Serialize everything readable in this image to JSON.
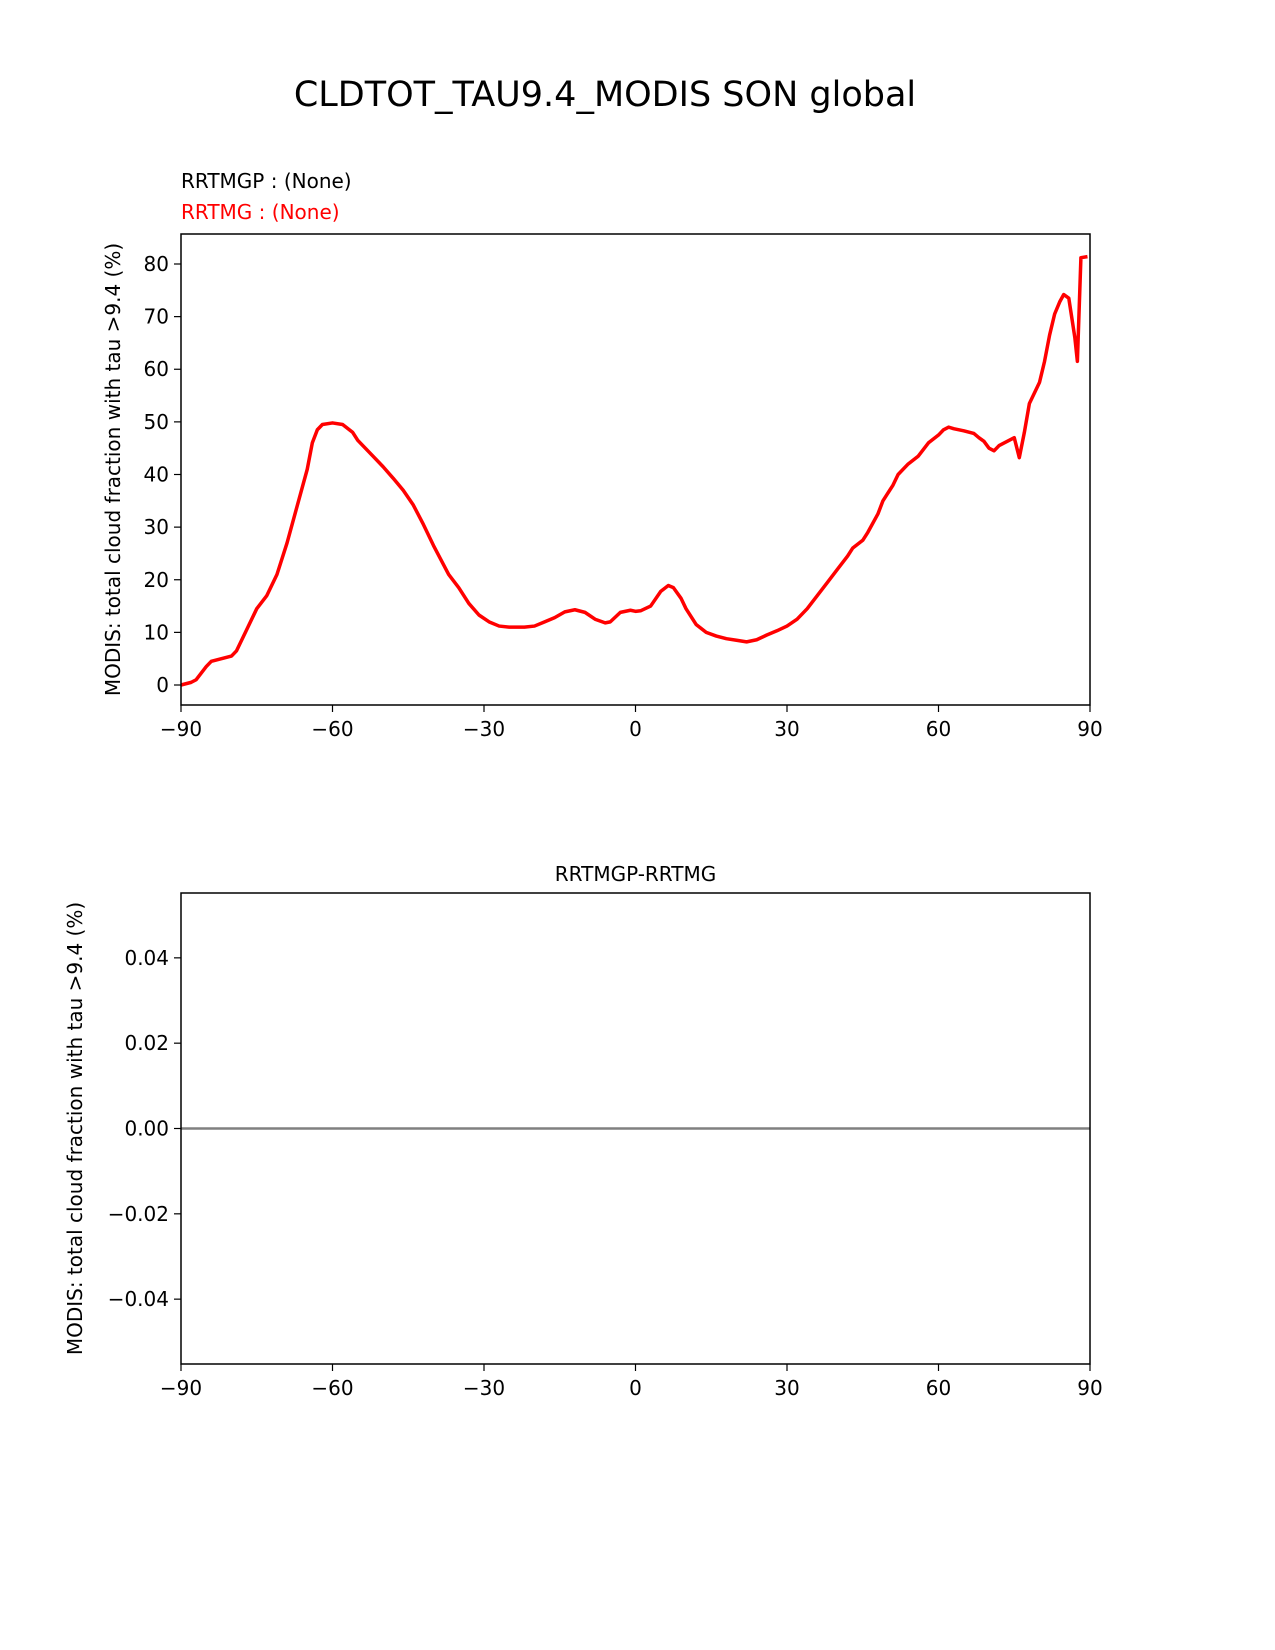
{
  "title": "CLDTOT_TAU9.4_MODIS SON global",
  "chart_data": [
    {
      "type": "line",
      "annotations": [
        {
          "text": "RRTMGP :   (None)",
          "color": "#000000"
        },
        {
          "text": "RRTMG :  (None)",
          "color": "#ff0000"
        }
      ],
      "y_label": "MODIS: total cloud fraction with tau >9.4 (%)",
      "xlim": [
        -90,
        90
      ],
      "ylim": [
        -3.8,
        85.7
      ],
      "xticks": [
        {
          "value": -90,
          "label": "−90"
        },
        {
          "value": -60,
          "label": "−60"
        },
        {
          "value": -30,
          "label": "−30"
        },
        0,
        30,
        60,
        90
      ],
      "yticks": [
        0,
        10,
        20,
        30,
        40,
        50,
        60,
        70,
        80
      ],
      "series": [
        {
          "color": "#ff0000",
          "x": [
            -90,
            -88,
            -87,
            -85,
            -84,
            -82,
            -80,
            -79,
            -77,
            -75,
            -73,
            -71,
            -69,
            -67,
            -65,
            -64,
            -63,
            -62,
            -60,
            -58,
            -56,
            -55,
            -52,
            -50,
            -48,
            -46,
            -44,
            -42,
            -40,
            -37,
            -35,
            -33,
            -31,
            -29,
            -27,
            -25,
            -22,
            -20,
            -18,
            -16,
            -14,
            -12,
            -10,
            -8,
            -6,
            -5,
            -3,
            -1,
            0,
            1,
            3,
            5,
            6.5,
            7.5,
            9,
            10,
            12,
            14,
            16,
            18,
            20,
            22,
            24,
            26,
            28,
            30,
            32,
            34,
            36,
            38,
            40,
            42,
            43,
            45,
            46,
            48,
            49,
            51,
            52,
            54,
            56,
            58,
            60,
            61,
            62,
            63,
            65,
            67,
            68,
            69,
            70,
            71,
            72,
            74,
            75,
            76,
            77,
            78,
            80,
            81,
            82,
            83,
            84,
            84.8,
            85.8,
            87,
            87.5,
            88.2,
            89.5
          ],
          "values": [
            0,
            0.5,
            1,
            3.5,
            4.5,
            5,
            5.5,
            6.5,
            10.5,
            14.5,
            17,
            21,
            27,
            34,
            41,
            46,
            48.5,
            49.5,
            49.8,
            49.5,
            48,
            46.5,
            43.5,
            41.5,
            39.3,
            37,
            34.2,
            30.5,
            26.5,
            21,
            18.5,
            15.5,
            13.3,
            12,
            11.2,
            11,
            11,
            11.2,
            12,
            12.8,
            13.9,
            14.3,
            13.8,
            12.5,
            11.8,
            12,
            13.8,
            14.2,
            14,
            14.1,
            15,
            17.8,
            18.9,
            18.5,
            16.5,
            14.5,
            11.5,
            10,
            9.3,
            8.8,
            8.5,
            8.2,
            8.6,
            9.5,
            10.3,
            11.2,
            12.5,
            14.5,
            17,
            19.5,
            22,
            24.5,
            26,
            27.5,
            29,
            32.5,
            35,
            38,
            40,
            42,
            43.5,
            46,
            47.5,
            48.5,
            49,
            48.7,
            48.3,
            47.8,
            47,
            46.3,
            45,
            44.5,
            45.5,
            46.5,
            47,
            43.2,
            48,
            53.5,
            57.5,
            61.5,
            66.5,
            70.5,
            72.8,
            74.2,
            73.5,
            66,
            61.5,
            81.2,
            81.4
          ]
        }
      ]
    },
    {
      "type": "line",
      "title": "RRTMGP-RRTMG",
      "y_label": "MODIS: total cloud fraction with tau >9.4 (%)",
      "xlim": [
        -90,
        90
      ],
      "ylim": [
        -0.0552,
        0.0552
      ],
      "xticks": [
        {
          "value": -90,
          "label": "−90"
        },
        {
          "value": -60,
          "label": "−60"
        },
        {
          "value": -30,
          "label": "−30"
        },
        0,
        30,
        60,
        90
      ],
      "yticks": [
        {
          "value": -0.04,
          "label": "−0.04"
        },
        {
          "value": -0.02,
          "label": "−0.02"
        },
        {
          "value": 0,
          "label": "0.00"
        },
        0.02,
        0.04
      ],
      "hline": {
        "value": 0,
        "color": "#808080"
      },
      "series": []
    }
  ]
}
